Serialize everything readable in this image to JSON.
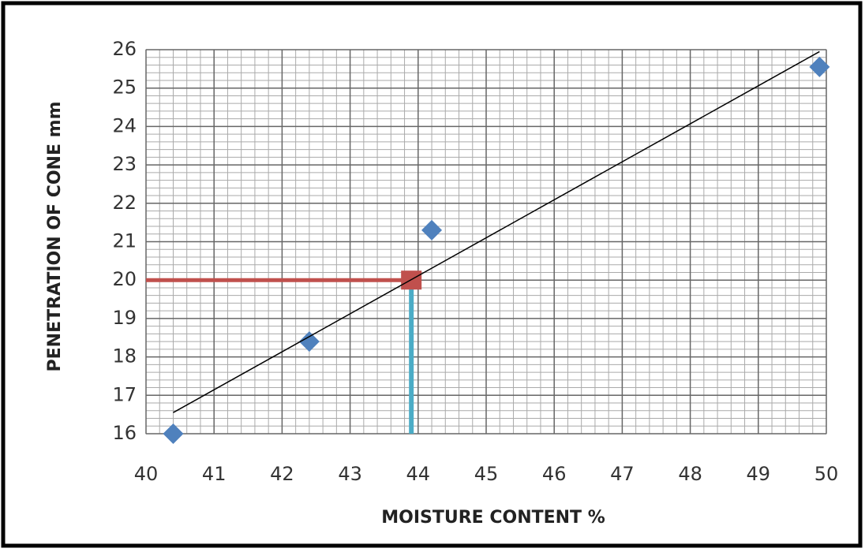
{
  "chart_data": {
    "type": "scatter",
    "xlabel": "MOISTURE CONTENT  %",
    "ylabel": "PENETRATION OF CONE    mm",
    "xlim": [
      40,
      50
    ],
    "xticks": [
      40,
      41,
      42,
      43,
      44,
      45,
      46,
      47,
      48,
      49,
      50
    ],
    "ylim": [
      16,
      26
    ],
    "yticks": [
      16,
      17,
      18,
      19,
      20,
      21,
      22,
      23,
      24,
      25,
      26
    ],
    "grid": true,
    "series": [
      {
        "x": [
          40.4,
          42.4,
          44.2,
          49.9
        ],
        "values": [
          16.0,
          18.4,
          21.3,
          25.55
        ],
        "color": "#4f81bd",
        "marker": "diamond"
      },
      {
        "x": [
          40.4,
          49.9
        ],
        "values": [
          16.55,
          25.95
        ],
        "color": "#000000",
        "marker": "line"
      }
    ],
    "reference": {
      "x": 43.9,
      "y": 20,
      "h_color": "#c0504d",
      "v_color": "#4bacc6"
    }
  }
}
